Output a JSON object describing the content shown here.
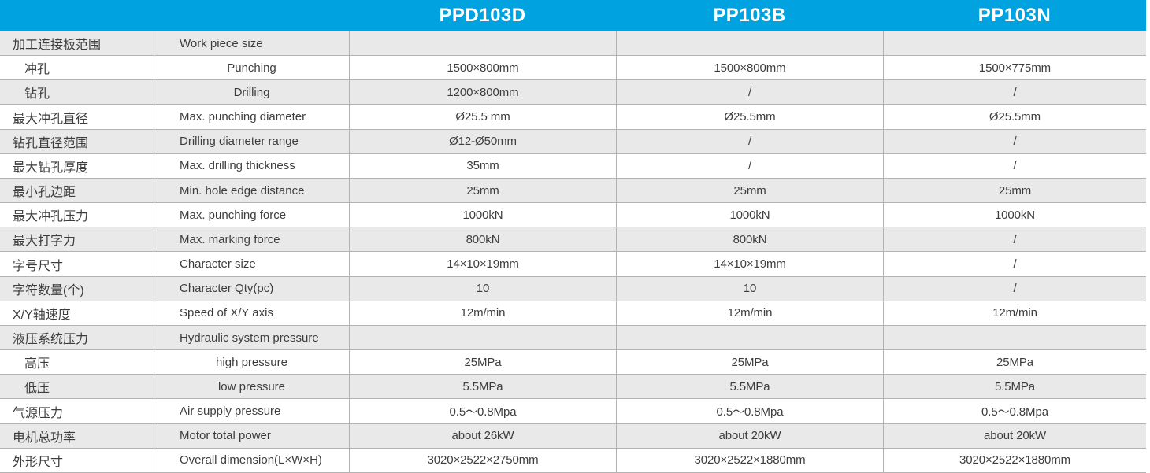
{
  "table": {
    "models": [
      "PPD103D",
      "PP103B",
      "PP103N"
    ],
    "rows": [
      {
        "cn": "加工连接板范围",
        "en": "Work piece size",
        "sub": false,
        "values": [
          "",
          "",
          ""
        ]
      },
      {
        "cn": "冲孔",
        "en": "Punching",
        "sub": true,
        "values": [
          "1500×800mm",
          "1500×800mm",
          "1500×775mm"
        ]
      },
      {
        "cn": "钻孔",
        "en": "Drilling",
        "sub": true,
        "values": [
          "1200×800mm",
          "/",
          "/"
        ]
      },
      {
        "cn": "最大冲孔直径",
        "en": "Max. punching diameter",
        "sub": false,
        "values": [
          "Ø25.5 mm",
          "Ø25.5mm",
          "Ø25.5mm"
        ]
      },
      {
        "cn": "钻孔直径范围",
        "en": "Drilling diameter range",
        "sub": false,
        "values": [
          "Ø12-Ø50mm",
          "/",
          "/"
        ]
      },
      {
        "cn": "最大钻孔厚度",
        "en": "Max. drilling thickness",
        "sub": false,
        "values": [
          "35mm",
          "/",
          "/"
        ]
      },
      {
        "cn": "最小孔边距",
        "en": "Min. hole edge distance",
        "sub": false,
        "values": [
          "25mm",
          "25mm",
          "25mm"
        ]
      },
      {
        "cn": "最大冲孔压力",
        "en": "Max. punching force",
        "sub": false,
        "values": [
          "1000kN",
          "1000kN",
          "1000kN"
        ]
      },
      {
        "cn": "最大打字力",
        "en": "Max. marking force",
        "sub": false,
        "values": [
          "800kN",
          "800kN",
          "/"
        ]
      },
      {
        "cn": "字号尺寸",
        "en": "Character size",
        "sub": false,
        "values": [
          "14×10×19mm",
          "14×10×19mm",
          "/"
        ]
      },
      {
        "cn": "字符数量(个)",
        "en": "Character Qty(pc)",
        "sub": false,
        "values": [
          "10",
          "10",
          "/"
        ]
      },
      {
        "cn": "X/Y轴速度",
        "en": "Speed of X/Y axis",
        "sub": false,
        "values": [
          "12m/min",
          "12m/min",
          "12m/min"
        ]
      },
      {
        "cn": "液压系统压力",
        "en": "Hydraulic system pressure",
        "sub": false,
        "values": [
          "",
          "",
          ""
        ]
      },
      {
        "cn": "高压",
        "en": "high pressure",
        "sub": true,
        "values": [
          "25MPa",
          "25MPa",
          "25MPa"
        ]
      },
      {
        "cn": "低压",
        "en": "low pressure",
        "sub": true,
        "values": [
          "5.5MPa",
          "5.5MPa",
          "5.5MPa"
        ]
      },
      {
        "cn": "气源压力",
        "en": "Air supply pressure",
        "sub": false,
        "values": [
          "0.5～0.8Mpa",
          "0.5～0.8Mpa",
          "0.5～0.8Mpa"
        ]
      },
      {
        "cn": "电机总功率",
        "en": "Motor total power",
        "sub": false,
        "values": [
          "about 26kW",
          "about 20kW",
          "about 20kW"
        ]
      },
      {
        "cn": "外形尺寸",
        "en": "Overall dimension(L×W×H)",
        "sub": false,
        "values": [
          "3020×2522×2750mm",
          "3020×2522×1880mm",
          "3020×2522×1880mm"
        ]
      }
    ]
  },
  "colors": {
    "header_bg": "#00a2e0",
    "header_text": "#ffffff",
    "row_alt_bg": "#e9e9e9",
    "row_bg": "#ffffff",
    "border": "#b3b3b3",
    "text": "#3d3d3d"
  }
}
